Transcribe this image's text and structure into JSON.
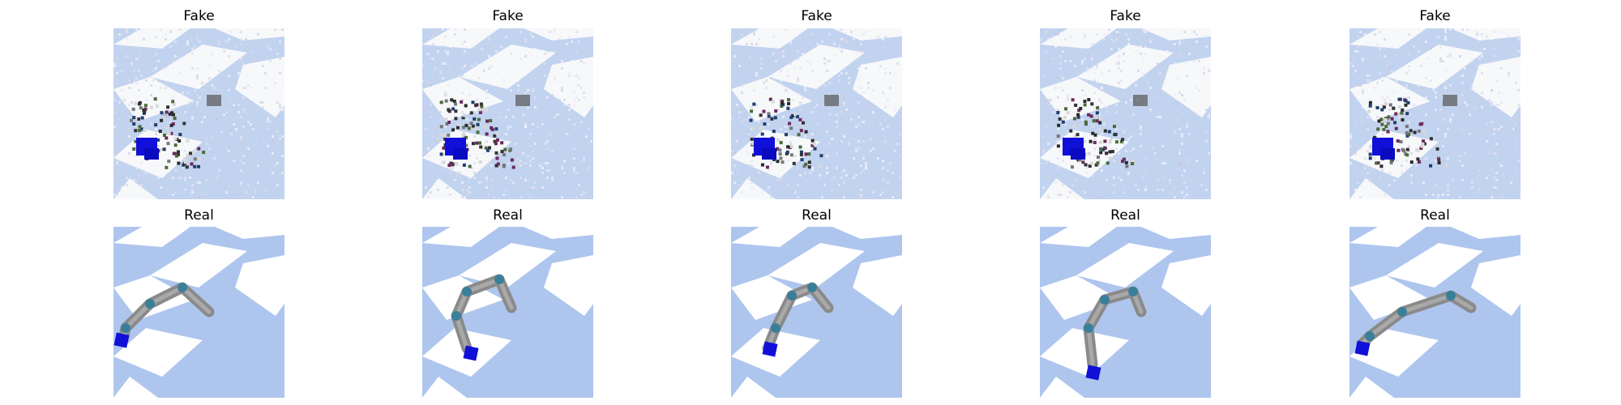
{
  "rows": [
    {
      "id": "fake",
      "titles": [
        "Fake",
        "Fake",
        "Fake",
        "Fake",
        "Fake"
      ]
    },
    {
      "id": "real",
      "titles": [
        "Real",
        "Real",
        "Real",
        "Real",
        "Real"
      ]
    }
  ],
  "colors": {
    "floor_blue": "#aec6ee",
    "floor_white": "#ffffff",
    "arm_grey": "#8a8a8a",
    "joint_teal": "#3a7f9a",
    "cube_blue": "#1010d8",
    "noise_light": "#e9ecf2"
  }
}
